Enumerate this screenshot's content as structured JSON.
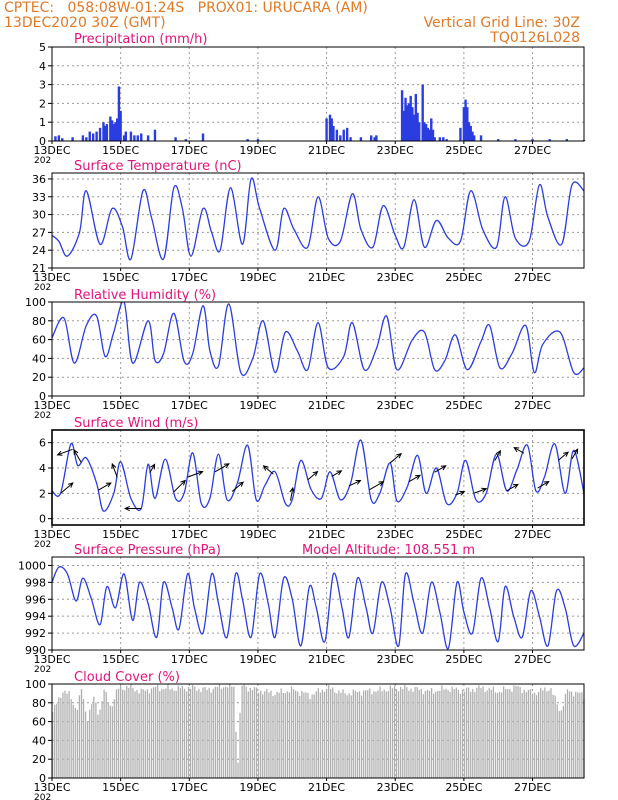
{
  "header": {
    "line1": "CPTEC:   058:08W-01:24S   PROX01: URUCARA (AM)",
    "date": "13DEC2020 30Z (GMT)",
    "grid_note": "Vertical Grid Line: 30Z",
    "model_code": "TQ0126L028"
  },
  "colors": {
    "title": "#e0157a",
    "header": "#e07a26",
    "series": "#2a3de0",
    "cloud": "#b0b0b0"
  },
  "x_ticks": [
    "13DEC",
    "15DEC",
    "17DEC",
    "19DEC",
    "21DEC",
    "23DEC",
    "25DEC",
    "27DEC"
  ],
  "year_fragment": "202",
  "chart_data": [
    {
      "type": "bar",
      "title": "Precipitation (mm/h)",
      "ylim": [
        0,
        5
      ],
      "yticks": [
        0,
        1,
        2,
        3,
        4,
        5
      ],
      "x_unit": "days since 13DEC 30Z",
      "points": [
        [
          0.1,
          0.25
        ],
        [
          0.2,
          0.3
        ],
        [
          0.3,
          0.15
        ],
        [
          0.6,
          0.2
        ],
        [
          0.9,
          0.3
        ],
        [
          1.0,
          0.2
        ],
        [
          1.1,
          0.5
        ],
        [
          1.2,
          0.4
        ],
        [
          1.3,
          0.5
        ],
        [
          1.4,
          0.7
        ],
        [
          1.5,
          1.0
        ],
        [
          1.55,
          0.8
        ],
        [
          1.6,
          0.9
        ],
        [
          1.7,
          1.3
        ],
        [
          1.75,
          1.1
        ],
        [
          1.8,
          0.9
        ],
        [
          1.85,
          1.0
        ],
        [
          1.9,
          1.2
        ],
        [
          1.95,
          2.9
        ],
        [
          2.0,
          1.6
        ],
        [
          2.1,
          0.3
        ],
        [
          2.15,
          0.5
        ],
        [
          2.3,
          0.5
        ],
        [
          2.4,
          0.3
        ],
        [
          2.5,
          0.3
        ],
        [
          2.6,
          0.4
        ],
        [
          2.8,
          0.3
        ],
        [
          3.0,
          0.6
        ],
        [
          3.6,
          0.2
        ],
        [
          3.9,
          0.1
        ],
        [
          4.4,
          0.4
        ],
        [
          5.7,
          0.1
        ],
        [
          6.0,
          0.1
        ],
        [
          8.0,
          1.2
        ],
        [
          8.1,
          1.4
        ],
        [
          8.15,
          1.2
        ],
        [
          8.2,
          0.8
        ],
        [
          8.3,
          0.6
        ],
        [
          8.4,
          0.3
        ],
        [
          8.5,
          0.6
        ],
        [
          8.6,
          0.7
        ],
        [
          8.7,
          0.2
        ],
        [
          9.0,
          0.2
        ],
        [
          9.3,
          0.3
        ],
        [
          9.4,
          0.2
        ],
        [
          9.45,
          0.3
        ],
        [
          10.2,
          2.7
        ],
        [
          10.25,
          1.6
        ],
        [
          10.3,
          2.3
        ],
        [
          10.35,
          1.9
        ],
        [
          10.4,
          2.0
        ],
        [
          10.45,
          2.4
        ],
        [
          10.5,
          1.8
        ],
        [
          10.55,
          1.4
        ],
        [
          10.6,
          2.5
        ],
        [
          10.65,
          1.5
        ],
        [
          10.7,
          1.0
        ],
        [
          10.8,
          3.0
        ],
        [
          10.85,
          1.0
        ],
        [
          10.9,
          0.9
        ],
        [
          10.95,
          0.7
        ],
        [
          11.0,
          0.6
        ],
        [
          11.05,
          1.2
        ],
        [
          11.1,
          0.6
        ],
        [
          11.15,
          0.2
        ],
        [
          11.3,
          0.2
        ],
        [
          11.4,
          0.2
        ],
        [
          11.5,
          0.1
        ],
        [
          11.9,
          0.7
        ],
        [
          12.0,
          1.8
        ],
        [
          12.05,
          2.2
        ],
        [
          12.1,
          1.8
        ],
        [
          12.15,
          1.0
        ],
        [
          12.2,
          0.8
        ],
        [
          12.25,
          0.5
        ],
        [
          12.3,
          0.3
        ],
        [
          12.5,
          0.3
        ],
        [
          13.0,
          0.1
        ],
        [
          13.5,
          0.1
        ],
        [
          14.0,
          0.1
        ],
        [
          14.5,
          0.1
        ],
        [
          15.0,
          0.1
        ],
        [
          15.5,
          0.05
        ]
      ]
    },
    {
      "type": "line",
      "title": "Surface Temperature (nC)",
      "ylim": [
        21,
        37
      ],
      "yticks": [
        21,
        24,
        27,
        30,
        33,
        36
      ],
      "x_unit": "days since 13DEC 30Z",
      "x": [
        0.0,
        0.2,
        0.45,
        0.8,
        1.0,
        1.4,
        1.75,
        2.05,
        2.3,
        2.65,
        2.9,
        3.25,
        3.55,
        3.8,
        4.05,
        4.4,
        4.65,
        4.9,
        5.2,
        5.55,
        5.8,
        6.05,
        6.5,
        6.75,
        7.05,
        7.45,
        7.75,
        8.05,
        8.4,
        8.75,
        9.0,
        9.35,
        9.65,
        10.0,
        10.25,
        10.55,
        10.85,
        11.2,
        11.55,
        11.9,
        12.2,
        12.55,
        12.95,
        13.2,
        13.5,
        13.9,
        14.2,
        14.45,
        14.85,
        15.15,
        15.5
      ],
      "y": [
        26.5,
        25.5,
        23.0,
        27.0,
        34.0,
        25.0,
        31.0,
        28.0,
        22.5,
        34.0,
        29.5,
        22.5,
        34.5,
        31.0,
        23.0,
        31.0,
        27.0,
        24.0,
        34.5,
        25.0,
        36.0,
        31.0,
        24.0,
        31.0,
        27.5,
        24.5,
        33.0,
        26.0,
        25.5,
        33.5,
        27.5,
        24.5,
        31.5,
        26.5,
        24.5,
        32.5,
        24.5,
        29.0,
        26.0,
        25.5,
        34.0,
        27.5,
        24.5,
        33.0,
        26.0,
        25.5,
        35.0,
        29.5,
        25.0,
        35.0,
        34.0
      ]
    },
    {
      "type": "line",
      "title": "Relative Humidity (%)",
      "ylim": [
        0,
        100
      ],
      "yticks": [
        0,
        20,
        40,
        60,
        80,
        100
      ],
      "x_unit": "days since 13DEC 30Z",
      "x": [
        0.0,
        0.35,
        0.65,
        1.0,
        1.3,
        1.55,
        1.8,
        2.1,
        2.35,
        2.8,
        3.0,
        3.25,
        3.55,
        3.85,
        4.1,
        4.4,
        4.6,
        4.85,
        5.15,
        5.5,
        5.85,
        6.15,
        6.5,
        6.8,
        7.15,
        7.45,
        7.75,
        8.05,
        8.5,
        8.75,
        9.1,
        9.45,
        9.75,
        10.05,
        10.5,
        10.85,
        11.15,
        11.45,
        11.75,
        12.1,
        12.5,
        12.75,
        13.05,
        13.4,
        13.8,
        14.05,
        14.3,
        14.8,
        15.2,
        15.5
      ],
      "y": [
        62.0,
        83.0,
        35.0,
        75.0,
        85.0,
        42.0,
        68.0,
        100.0,
        35.0,
        80.0,
        38.0,
        45.0,
        88.0,
        37.0,
        45.0,
        96.0,
        48.0,
        32.0,
        98.0,
        25.0,
        40.0,
        80.0,
        25.0,
        68.0,
        48.0,
        28.0,
        78.0,
        30.0,
        42.0,
        78.0,
        28.0,
        50.0,
        85.0,
        28.0,
        60.0,
        68.0,
        28.0,
        38.0,
        65.0,
        28.0,
        58.0,
        75.0,
        30.0,
        45.0,
        75.0,
        25.0,
        55.0,
        68.0,
        25.0,
        30.0
      ]
    },
    {
      "type": "line",
      "title": "Surface Wind (m/s)",
      "ylim": [
        -0.5,
        7
      ],
      "yticks": [
        0,
        2,
        4,
        6
      ],
      "x_unit": "days since 13DEC 30Z",
      "x": [
        0.0,
        0.25,
        0.55,
        0.75,
        1.0,
        1.3,
        1.5,
        1.8,
        2.0,
        2.3,
        2.6,
        2.8,
        3.0,
        3.3,
        3.6,
        3.85,
        4.1,
        4.35,
        4.6,
        4.85,
        5.1,
        5.4,
        5.7,
        5.95,
        6.2,
        6.5,
        6.8,
        7.0,
        7.25,
        7.55,
        7.85,
        8.1,
        8.4,
        8.7,
        9.0,
        9.3,
        9.55,
        9.85,
        10.05,
        10.35,
        10.65,
        10.9,
        11.2,
        11.5,
        11.8,
        12.05,
        12.35,
        12.65,
        12.95,
        13.25,
        13.55,
        13.85,
        14.1,
        14.35,
        14.65,
        14.95,
        15.2,
        15.5
      ],
      "y": [
        2.2,
        2.0,
        5.9,
        4.2,
        4.8,
        2.8,
        0.6,
        2.0,
        4.5,
        1.6,
        0.8,
        4.3,
        1.6,
        4.7,
        1.6,
        2.0,
        5.2,
        1.2,
        1.6,
        5.1,
        1.5,
        2.8,
        5.8,
        1.5,
        2.6,
        3.7,
        1.2,
        1.5,
        4.6,
        2.3,
        1.6,
        3.7,
        1.5,
        2.8,
        6.2,
        1.5,
        2.0,
        4.4,
        1.4,
        2.5,
        5.0,
        2.0,
        4.0,
        1.2,
        2.0,
        4.6,
        1.5,
        2.0,
        5.1,
        2.2,
        3.9,
        5.8,
        2.2,
        3.3,
        5.9,
        2.0,
        5.4,
        2.0
      ],
      "arrows": [
        [
          0.25,
          -40,
          1.0
        ],
        [
          0.6,
          160,
          1.0
        ],
        [
          0.85,
          -120,
          0.9
        ],
        [
          1.35,
          -30,
          0.9
        ],
        [
          1.9,
          -110,
          0.9
        ],
        [
          2.6,
          180,
          1.0
        ],
        [
          2.85,
          -60,
          0.6
        ],
        [
          3.55,
          -45,
          1.0
        ],
        [
          3.95,
          -20,
          1.0
        ],
        [
          4.75,
          -30,
          1.0
        ],
        [
          5.25,
          -40,
          0.9
        ],
        [
          6.45,
          -140,
          0.8
        ],
        [
          6.95,
          -80,
          0.8
        ],
        [
          7.45,
          -40,
          0.8
        ],
        [
          8.15,
          -30,
          0.7
        ],
        [
          8.65,
          -25,
          0.8
        ],
        [
          9.25,
          -30,
          1.0
        ],
        [
          9.85,
          -40,
          0.9
        ],
        [
          10.4,
          -30,
          0.8
        ],
        [
          11.15,
          -30,
          0.8
        ],
        [
          11.75,
          -20,
          0.6
        ],
        [
          12.3,
          -20,
          0.8
        ],
        [
          12.9,
          -60,
          0.7
        ],
        [
          13.25,
          -30,
          0.8
        ],
        [
          13.75,
          -150,
          0.7
        ],
        [
          14.15,
          -30,
          0.8
        ],
        [
          14.75,
          -40,
          0.8
        ],
        [
          15.15,
          -60,
          0.7
        ]
      ]
    },
    {
      "type": "line",
      "title": "Surface Pressure (hPa)",
      "annotation": "Model Altitude: 108.551  m",
      "ylim": [
        990,
        1001
      ],
      "yticks": [
        990,
        992,
        994,
        996,
        998,
        1000
      ],
      "x_unit": "days since 13DEC 30Z",
      "x": [
        0.0,
        0.2,
        0.45,
        0.7,
        0.9,
        1.15,
        1.4,
        1.6,
        1.85,
        2.1,
        2.35,
        2.55,
        2.8,
        3.05,
        3.25,
        3.5,
        3.7,
        3.95,
        4.15,
        4.4,
        4.65,
        4.85,
        5.1,
        5.35,
        5.55,
        5.8,
        6.05,
        6.3,
        6.5,
        6.75,
        7.0,
        7.25,
        7.5,
        7.7,
        7.95,
        8.2,
        8.45,
        8.65,
        8.9,
        9.15,
        9.35,
        9.6,
        9.85,
        10.1,
        10.3,
        10.55,
        10.8,
        11.05,
        11.3,
        11.55,
        11.8,
        12.0,
        12.25,
        12.5,
        12.75,
        13.0,
        13.2,
        13.45,
        13.7,
        13.95,
        14.2,
        14.45,
        14.7,
        14.95,
        15.2,
        15.5
      ],
      "y": [
        998.0,
        999.8,
        999.0,
        995.8,
        998.5,
        996.0,
        993.0,
        997.5,
        995.0,
        999.0,
        993.5,
        998.0,
        995.5,
        991.5,
        998.0,
        995.0,
        992.5,
        999.0,
        995.0,
        992.0,
        999.0,
        995.5,
        991.5,
        999.0,
        996.0,
        991.5,
        999.0,
        995.5,
        991.5,
        998.5,
        996.0,
        990.5,
        997.5,
        995.0,
        991.0,
        999.0,
        995.0,
        991.5,
        998.5,
        995.0,
        992.0,
        998.0,
        995.0,
        990.5,
        999.0,
        995.5,
        992.0,
        998.0,
        994.5,
        990.2,
        998.0,
        994.5,
        992.0,
        998.5,
        995.0,
        991.0,
        997.5,
        994.0,
        991.5,
        997.0,
        994.0,
        990.5,
        997.0,
        995.0,
        990.5,
        992.0
      ]
    },
    {
      "type": "bar",
      "title": "Cloud Cover (%)",
      "ylim": [
        0,
        100
      ],
      "yticks": [
        0,
        20,
        40,
        60,
        80,
        100
      ],
      "x_unit": "days since 13DEC 30Z",
      "x": [
        0.0,
        0.3,
        0.5,
        0.7,
        0.85,
        1.0,
        1.2,
        1.35,
        1.5,
        1.7,
        1.9,
        2.2,
        2.6,
        3.0,
        3.5,
        4.0,
        4.5,
        5.0,
        5.3,
        5.38,
        5.5,
        6.0,
        6.5,
        7.0,
        7.5,
        8.0,
        8.5,
        9.0,
        9.5,
        10.0,
        10.5,
        11.0,
        11.5,
        12.0,
        12.5,
        13.0,
        13.5,
        14.0,
        14.5,
        14.8,
        15.0,
        15.5
      ],
      "y": [
        70.0,
        93.0,
        88.0,
        72.0,
        95.0,
        62.0,
        85.0,
        68.0,
        93.0,
        75.0,
        95.0,
        97.0,
        92.0,
        96.0,
        95.0,
        96.0,
        94.0,
        98.0,
        97.0,
        4.0,
        98.0,
        93.0,
        90.0,
        94.0,
        88.0,
        96.0,
        90.0,
        92.0,
        93.0,
        96.0,
        95.0,
        92.0,
        95.0,
        93.0,
        96.0,
        92.0,
        97.0,
        90.0,
        96.0,
        70.0,
        93.0,
        88.0
      ]
    }
  ]
}
